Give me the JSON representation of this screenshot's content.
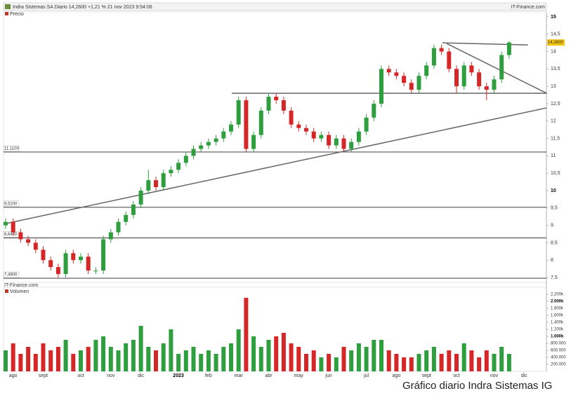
{
  "chart_data": {
    "type": "candlestick",
    "title": "Indra Sistemas SA Diario 14,2600 +1,21 % 21 nov 2023 9:54:06",
    "source": "IT-Finance.com",
    "caption": "Gráfico diario Indra Sistemas IG",
    "up_color": "#2e9e3e",
    "down_color": "#d62728",
    "categories": [
      null,
      "ago",
      null,
      null,
      null,
      "sept",
      null,
      null,
      null,
      null,
      "oct",
      null,
      null,
      null,
      "nov",
      null,
      null,
      null,
      "dic",
      null,
      null,
      null,
      null,
      "2023",
      null,
      null,
      null,
      "feb",
      null,
      null,
      null,
      "mar",
      null,
      null,
      null,
      "abr",
      null,
      null,
      null,
      "may",
      null,
      null,
      null,
      "jun",
      null,
      null,
      null,
      null,
      "jul",
      null,
      null,
      null,
      "ago",
      null,
      null,
      null,
      "sept",
      null,
      null,
      null,
      "oct",
      null,
      null,
      null,
      null,
      "nov",
      null,
      null,
      null,
      "dic"
    ],
    "series": [
      {
        "name": "Precio",
        "color": "#c0392b",
        "open": [
          9.0,
          9.1,
          8.8,
          8.6,
          8.5,
          8.3,
          8.0,
          7.8,
          7.6,
          8.2,
          8.0,
          8.1,
          7.7,
          7.7,
          8.6,
          8.8,
          9.1,
          9.3,
          9.6,
          10.0,
          10.3,
          10.1,
          10.5,
          10.6,
          10.8,
          11.0,
          11.2,
          11.3,
          11.4,
          11.5,
          11.7,
          11.9,
          12.6,
          11.2,
          11.6,
          12.3,
          12.7,
          12.6,
          12.3,
          11.9,
          11.8,
          11.7,
          11.5,
          11.6,
          11.3,
          11.5,
          11.2,
          11.4,
          11.7,
          12.1,
          12.5,
          13.5,
          13.4,
          13.3,
          13.1,
          12.9,
          13.3,
          13.6,
          14.1,
          14.0,
          13.5,
          13.0,
          13.6,
          13.4,
          13.0,
          12.9,
          13.2,
          13.9,
          null,
          null
        ],
        "high": [
          9.2,
          9.2,
          8.9,
          8.7,
          8.6,
          8.4,
          8.1,
          7.9,
          8.3,
          8.3,
          8.2,
          8.2,
          7.8,
          8.7,
          8.9,
          9.2,
          9.4,
          9.7,
          10.1,
          10.6,
          10.4,
          10.6,
          10.7,
          10.9,
          11.1,
          11.3,
          11.4,
          11.5,
          11.6,
          11.8,
          12.0,
          12.7,
          12.7,
          11.7,
          12.4,
          12.8,
          12.8,
          12.7,
          12.4,
          12.0,
          11.9,
          11.8,
          11.7,
          11.7,
          11.6,
          11.6,
          11.5,
          11.8,
          12.2,
          12.6,
          13.6,
          13.6,
          13.5,
          13.4,
          13.2,
          13.4,
          13.7,
          14.2,
          14.2,
          14.1,
          13.6,
          13.7,
          13.7,
          13.5,
          13.1,
          13.3,
          14.0,
          14.3,
          null,
          null
        ],
        "low": [
          8.9,
          8.7,
          8.5,
          8.4,
          8.2,
          7.9,
          7.7,
          7.5,
          7.5,
          7.9,
          7.9,
          7.6,
          7.6,
          7.6,
          8.5,
          8.7,
          9.0,
          9.2,
          9.5,
          9.9,
          10.0,
          10.0,
          10.4,
          10.5,
          10.7,
          10.9,
          11.1,
          11.2,
          11.3,
          11.4,
          11.6,
          11.8,
          11.1,
          11.1,
          11.5,
          12.2,
          12.5,
          12.2,
          11.8,
          11.7,
          11.6,
          11.4,
          11.4,
          11.2,
          11.2,
          11.1,
          11.1,
          11.3,
          11.6,
          12.0,
          12.4,
          13.3,
          13.2,
          13.0,
          12.8,
          12.8,
          13.2,
          13.5,
          13.9,
          13.4,
          12.8,
          12.9,
          13.3,
          12.9,
          12.6,
          12.8,
          13.1,
          13.8,
          null,
          null
        ],
        "close": [
          9.1,
          8.8,
          8.6,
          8.5,
          8.3,
          8.0,
          7.8,
          7.6,
          8.2,
          8.0,
          8.1,
          7.7,
          7.7,
          8.6,
          8.8,
          9.1,
          9.3,
          9.6,
          10.0,
          10.3,
          10.1,
          10.5,
          10.6,
          10.8,
          11.0,
          11.2,
          11.3,
          11.4,
          11.5,
          11.7,
          11.9,
          12.6,
          11.2,
          11.6,
          12.3,
          12.7,
          12.6,
          12.3,
          11.9,
          11.8,
          11.7,
          11.5,
          11.6,
          11.3,
          11.5,
          11.2,
          11.4,
          11.7,
          12.1,
          12.5,
          13.5,
          13.4,
          13.3,
          13.1,
          12.9,
          13.3,
          13.6,
          14.1,
          14.0,
          13.5,
          13.0,
          13.6,
          13.4,
          13.0,
          12.9,
          13.2,
          13.9,
          14.26,
          null,
          null
        ]
      }
    ],
    "ylim": [
      7.36,
      15.14
    ],
    "yticks": [
      {
        "value": 7.5,
        "label": "7,5"
      },
      8,
      {
        "value": 8.5,
        "label": "8,5"
      },
      9,
      {
        "value": 9.5,
        "label": "9,5"
      },
      10,
      {
        "value": 10.5,
        "label": "10,5"
      },
      11,
      {
        "value": 11.5,
        "label": "11,5"
      },
      12,
      {
        "value": 12.5,
        "label": "12,5"
      },
      13,
      {
        "value": 13.5,
        "label": "13,5"
      },
      14,
      {
        "value": 14.5,
        "label": "14,5"
      },
      15
    ],
    "last": {
      "value": 14.26,
      "label": "14,2600"
    },
    "levels": [
      {
        "value": 11.11,
        "label": "11,1100"
      },
      {
        "value": 9.52,
        "label": "9,5200"
      },
      {
        "value": 8.64,
        "label": "8,6400"
      },
      {
        "value": 7.48,
        "label": "7,4800"
      }
    ],
    "lines": [
      {
        "x": [
          0,
          72
        ],
        "y": [
          9.05,
          12.38
        ]
      },
      {
        "x": [
          30.1,
          72
        ],
        "y": [
          12.8,
          12.8
        ]
      },
      {
        "x": [
          58.1,
          69.5
        ],
        "y": [
          14.25,
          14.19
        ]
      },
      {
        "x": [
          58.7,
          72
        ],
        "y": [
          14.23,
          12.8
        ]
      }
    ],
    "volume": {
      "source": "IT-Finance.com",
      "name": "Volumen",
      "values": [
        600000,
        800000,
        500000,
        700000,
        500000,
        800000,
        600000,
        700000,
        900000,
        500000,
        600000,
        700000,
        900000,
        1000000,
        700000,
        600000,
        800000,
        900000,
        1300000,
        700000,
        600000,
        800000,
        1200000,
        500000,
        600000,
        700000,
        500000,
        600000,
        500000,
        700000,
        800000,
        1200000,
        2100000,
        1000000,
        700000,
        900000,
        1000000,
        1100000,
        800000,
        700000,
        500000,
        600000,
        400000,
        500000,
        400000,
        700000,
        600000,
        800000,
        700000,
        900000,
        900000,
        600000,
        500000,
        400000,
        400000,
        500000,
        600000,
        700000,
        500000,
        600000,
        500000,
        800000,
        600000,
        400000,
        600000,
        500000,
        700000,
        500000,
        null,
        null
      ],
      "ylim": [
        0,
        2400000
      ],
      "yticks": [
        {
          "value": 200000,
          "label": "200.000"
        },
        {
          "value": 400000,
          "label": "400.000"
        },
        {
          "value": 600000,
          "label": "600.000"
        },
        {
          "value": 800000,
          "label": "800.000"
        },
        {
          "value": 1000000,
          "label": "1.000k"
        },
        {
          "value": 1200000,
          "label": "1.200k"
        },
        {
          "value": 1400000,
          "label": "1.400k"
        },
        {
          "value": 1600000,
          "label": "1.600k"
        },
        {
          "value": 1800000,
          "label": "1.800k"
        },
        {
          "value": 2000000,
          "label": "2.000k"
        },
        {
          "value": 2200000,
          "label": "2.200k"
        }
      ]
    }
  }
}
